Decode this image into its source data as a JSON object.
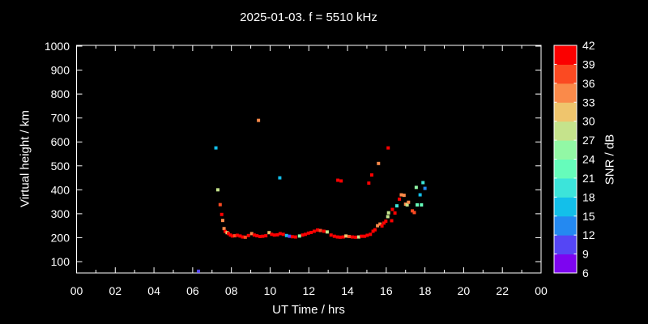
{
  "colors": {
    "background": "#000000",
    "foreground": "#ffffff"
  },
  "chart_data": {
    "type": "scatter",
    "title": "2025-01-03. f = 5510 kHz",
    "xlabel": "UT Time / hrs",
    "ylabel": "Virtual height / km",
    "grid": false,
    "legend_position": "none",
    "colorbar_position": "right",
    "xlim_hours": [
      0,
      24
    ],
    "x_major_tick_step_hours": 2,
    "x_minor_tick_step_hours": 1,
    "x_tick_labels": [
      "00",
      "02",
      "04",
      "06",
      "08",
      "10",
      "12",
      "14",
      "16",
      "18",
      "20",
      "22",
      "00"
    ],
    "y_tick_values_km": [
      100,
      200,
      300,
      400,
      500,
      600,
      700,
      800,
      900,
      1000
    ],
    "ylim_km_frame": [
      53,
      1003
    ],
    "marker": "square",
    "marker_size_px": 4,
    "colorbar": {
      "label": "SNR / dB",
      "tick_values": [
        6,
        9,
        12,
        15,
        18,
        21,
        24,
        27,
        30,
        33,
        36,
        39,
        42
      ],
      "segment_colors_low_to_high": [
        "#7d05f0",
        "#5546f5",
        "#2489f1",
        "#13bfea",
        "#3ce4da",
        "#66fcbb",
        "#92f8a5",
        "#c5e38c",
        "#efc56d",
        "#fa8a4a",
        "#fb4a22",
        "#fb0000"
      ]
    },
    "points_hour_km_snr": [
      [
        6.3,
        60,
        10
      ],
      [
        7.2,
        575,
        16
      ],
      [
        9.4,
        690,
        34
      ],
      [
        10.5,
        450,
        16
      ],
      [
        13.5,
        440,
        40
      ],
      [
        13.67,
        437,
        40
      ],
      [
        15.1,
        428,
        40
      ],
      [
        15.25,
        462,
        40
      ],
      [
        15.6,
        510,
        34
      ],
      [
        16.1,
        575,
        40
      ],
      [
        7.3,
        400,
        28
      ],
      [
        7.42,
        338,
        37
      ],
      [
        7.5,
        297,
        40
      ],
      [
        7.55,
        272,
        34
      ],
      [
        7.62,
        238,
        34
      ],
      [
        7.68,
        226,
        40
      ],
      [
        7.78,
        221,
        31
      ],
      [
        7.85,
        217,
        40
      ],
      [
        7.95,
        211,
        40
      ],
      [
        8.05,
        207,
        40
      ],
      [
        8.18,
        208,
        37
      ],
      [
        8.3,
        210,
        40
      ],
      [
        8.45,
        207,
        40
      ],
      [
        8.58,
        203,
        40
      ],
      [
        8.72,
        202,
        37
      ],
      [
        8.88,
        209,
        40
      ],
      [
        9.05,
        217,
        34
      ],
      [
        9.18,
        211,
        40
      ],
      [
        9.32,
        208,
        40
      ],
      [
        9.48,
        205,
        40
      ],
      [
        9.62,
        206,
        40
      ],
      [
        9.78,
        208,
        40
      ],
      [
        9.95,
        221,
        31
      ],
      [
        10.08,
        214,
        40
      ],
      [
        10.22,
        211,
        40
      ],
      [
        10.38,
        212,
        40
      ],
      [
        10.52,
        217,
        40
      ],
      [
        10.68,
        214,
        40
      ],
      [
        10.85,
        209,
        16
      ],
      [
        11.0,
        206,
        10
      ],
      [
        11.15,
        204,
        40
      ],
      [
        11.32,
        203,
        40
      ],
      [
        11.52,
        207,
        25
      ],
      [
        11.68,
        211,
        40
      ],
      [
        11.82,
        214,
        40
      ],
      [
        11.98,
        219,
        40
      ],
      [
        12.12,
        222,
        40
      ],
      [
        12.28,
        227,
        40
      ],
      [
        12.45,
        232,
        40
      ],
      [
        12.6,
        230,
        37
      ],
      [
        12.78,
        227,
        40
      ],
      [
        12.95,
        224,
        28
      ],
      [
        13.15,
        211,
        40
      ],
      [
        13.32,
        206,
        40
      ],
      [
        13.48,
        203,
        40
      ],
      [
        13.62,
        202,
        40
      ],
      [
        13.78,
        203,
        40
      ],
      [
        13.92,
        207,
        31
      ],
      [
        14.08,
        205,
        37
      ],
      [
        14.25,
        203,
        40
      ],
      [
        14.42,
        202,
        40
      ],
      [
        14.58,
        203,
        28
      ],
      [
        14.72,
        206,
        40
      ],
      [
        14.88,
        206,
        40
      ],
      [
        15.02,
        210,
        40
      ],
      [
        15.18,
        214,
        40
      ],
      [
        15.32,
        227,
        40
      ],
      [
        15.42,
        233,
        40
      ],
      [
        15.55,
        250,
        34
      ],
      [
        15.68,
        257,
        34
      ],
      [
        15.78,
        249,
        40
      ],
      [
        15.88,
        261,
        40
      ],
      [
        15.98,
        269,
        40
      ],
      [
        16.08,
        288,
        28
      ],
      [
        16.12,
        304,
        28
      ],
      [
        16.28,
        271,
        40
      ],
      [
        16.32,
        318,
        40
      ],
      [
        16.45,
        303,
        40
      ],
      [
        16.55,
        333,
        19
      ],
      [
        16.68,
        361,
        40
      ],
      [
        16.78,
        379,
        34
      ],
      [
        16.92,
        377,
        34
      ],
      [
        17.0,
        340,
        34
      ],
      [
        17.08,
        337,
        29
      ],
      [
        17.15,
        348,
        34
      ],
      [
        17.35,
        312,
        37
      ],
      [
        17.45,
        305,
        37
      ],
      [
        17.55,
        410,
        26
      ],
      [
        17.6,
        337,
        22
      ],
      [
        17.75,
        379,
        16
      ],
      [
        17.82,
        337,
        22
      ],
      [
        17.9,
        430,
        19
      ],
      [
        18.0,
        406,
        13
      ]
    ]
  }
}
